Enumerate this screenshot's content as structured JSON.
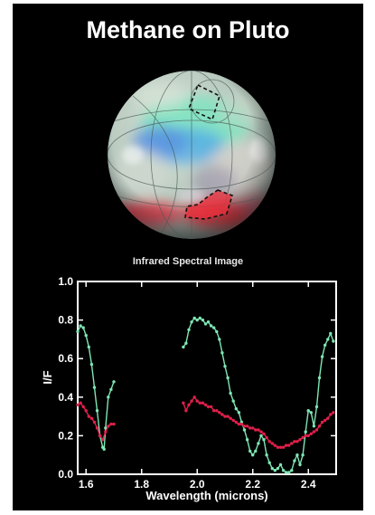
{
  "title": "Methane on Pluto",
  "image_caption": "Infrared Spectral Image",
  "colors": {
    "background": "#000000",
    "series_green": "#7ee6b4",
    "series_red": "#e0204a",
    "highlight_region": "#e8303c"
  },
  "chart_data": {
    "type": "line",
    "title": "",
    "xlabel": "Wavelength (microns)",
    "ylabel": "I/F",
    "xlim": [
      1.57,
      2.5
    ],
    "ylim": [
      0.0,
      1.0
    ],
    "xticks": [
      1.6,
      1.8,
      2.0,
      2.2,
      2.4
    ],
    "xtick_labels": [
      "1.6",
      "1.8",
      "2.0",
      "2.2",
      "2.4"
    ],
    "yticks": [
      0.0,
      0.2,
      0.4,
      0.6,
      0.8,
      1.0
    ],
    "ytick_labels": [
      "0.0",
      "0.2",
      "0.4",
      "0.6",
      "0.8",
      "1.0"
    ],
    "grid": false,
    "legend": "none",
    "series": [
      {
        "color": "#7ee6b4",
        "segments": [
          [
            [
              1.57,
              0.74
            ],
            [
              1.58,
              0.77
            ],
            [
              1.59,
              0.76
            ],
            [
              1.6,
              0.72
            ],
            [
              1.61,
              0.66
            ],
            [
              1.62,
              0.57
            ],
            [
              1.63,
              0.45
            ],
            [
              1.64,
              0.33
            ],
            [
              1.65,
              0.2
            ],
            [
              1.66,
              0.14
            ],
            [
              1.665,
              0.13
            ],
            [
              1.67,
              0.24
            ],
            [
              1.68,
              0.4
            ],
            [
              1.69,
              0.44
            ],
            [
              1.7,
              0.48
            ]
          ],
          [
            [
              1.95,
              0.66
            ],
            [
              1.96,
              0.68
            ],
            [
              1.97,
              0.75
            ],
            [
              1.98,
              0.79
            ],
            [
              1.99,
              0.81
            ],
            [
              2.0,
              0.8
            ],
            [
              2.01,
              0.81
            ],
            [
              2.02,
              0.8
            ],
            [
              2.03,
              0.78
            ],
            [
              2.04,
              0.79
            ],
            [
              2.05,
              0.77
            ],
            [
              2.06,
              0.76
            ],
            [
              2.07,
              0.74
            ],
            [
              2.08,
              0.7
            ],
            [
              2.09,
              0.63
            ],
            [
              2.1,
              0.56
            ],
            [
              2.11,
              0.5
            ],
            [
              2.12,
              0.42
            ],
            [
              2.13,
              0.38
            ],
            [
              2.14,
              0.34
            ],
            [
              2.15,
              0.32
            ],
            [
              2.16,
              0.27
            ],
            [
              2.17,
              0.23
            ],
            [
              2.18,
              0.18
            ],
            [
              2.19,
              0.12
            ],
            [
              2.2,
              0.1
            ],
            [
              2.21,
              0.12
            ],
            [
              2.22,
              0.16
            ],
            [
              2.23,
              0.2
            ],
            [
              2.24,
              0.18
            ],
            [
              2.25,
              0.1
            ],
            [
              2.26,
              0.06
            ],
            [
              2.27,
              0.03
            ],
            [
              2.28,
              0.02
            ],
            [
              2.29,
              0.03
            ],
            [
              2.3,
              0.05
            ],
            [
              2.31,
              0.02
            ],
            [
              2.32,
              0.01
            ],
            [
              2.33,
              0.01
            ],
            [
              2.34,
              0.02
            ],
            [
              2.35,
              0.07
            ],
            [
              2.36,
              0.1
            ],
            [
              2.37,
              0.05
            ],
            [
              2.38,
              0.1
            ],
            [
              2.39,
              0.22
            ],
            [
              2.4,
              0.33
            ],
            [
              2.41,
              0.32
            ],
            [
              2.42,
              0.25
            ],
            [
              2.43,
              0.35
            ],
            [
              2.44,
              0.5
            ],
            [
              2.45,
              0.61
            ],
            [
              2.46,
              0.67
            ],
            [
              2.47,
              0.7
            ],
            [
              2.48,
              0.73
            ],
            [
              2.49,
              0.69
            ]
          ]
        ]
      },
      {
        "color": "#e0204a",
        "segments": [
          [
            [
              1.57,
              0.36
            ],
            [
              1.58,
              0.37
            ],
            [
              1.59,
              0.35
            ],
            [
              1.6,
              0.33
            ],
            [
              1.61,
              0.3
            ],
            [
              1.62,
              0.29
            ],
            [
              1.63,
              0.27
            ],
            [
              1.64,
              0.24
            ],
            [
              1.65,
              0.2
            ],
            [
              1.66,
              0.18
            ],
            [
              1.67,
              0.22
            ],
            [
              1.68,
              0.25
            ],
            [
              1.69,
              0.26
            ],
            [
              1.7,
              0.26
            ]
          ],
          [
            [
              1.95,
              0.37
            ],
            [
              1.96,
              0.33
            ],
            [
              1.97,
              0.36
            ],
            [
              1.98,
              0.38
            ],
            [
              1.99,
              0.4
            ],
            [
              2.0,
              0.38
            ],
            [
              2.01,
              0.37
            ],
            [
              2.02,
              0.37
            ],
            [
              2.03,
              0.36
            ],
            [
              2.04,
              0.35
            ],
            [
              2.05,
              0.35
            ],
            [
              2.06,
              0.33
            ],
            [
              2.07,
              0.33
            ],
            [
              2.08,
              0.32
            ],
            [
              2.09,
              0.31
            ],
            [
              2.1,
              0.3
            ],
            [
              2.11,
              0.3
            ],
            [
              2.12,
              0.29
            ],
            [
              2.13,
              0.28
            ],
            [
              2.14,
              0.27
            ],
            [
              2.15,
              0.26
            ],
            [
              2.16,
              0.26
            ],
            [
              2.17,
              0.25
            ],
            [
              2.18,
              0.25
            ],
            [
              2.19,
              0.24
            ],
            [
              2.2,
              0.24
            ],
            [
              2.21,
              0.23
            ],
            [
              2.22,
              0.23
            ],
            [
              2.23,
              0.22
            ],
            [
              2.24,
              0.21
            ],
            [
              2.25,
              0.19
            ],
            [
              2.26,
              0.17
            ],
            [
              2.27,
              0.16
            ],
            [
              2.28,
              0.15
            ],
            [
              2.29,
              0.14
            ],
            [
              2.3,
              0.14
            ],
            [
              2.31,
              0.14
            ],
            [
              2.32,
              0.15
            ],
            [
              2.33,
              0.15
            ],
            [
              2.34,
              0.16
            ],
            [
              2.35,
              0.17
            ],
            [
              2.36,
              0.17
            ],
            [
              2.37,
              0.18
            ],
            [
              2.38,
              0.19
            ],
            [
              2.39,
              0.2
            ],
            [
              2.4,
              0.2
            ],
            [
              2.41,
              0.21
            ],
            [
              2.42,
              0.22
            ],
            [
              2.43,
              0.23
            ],
            [
              2.44,
              0.25
            ],
            [
              2.45,
              0.27
            ],
            [
              2.46,
              0.28
            ],
            [
              2.47,
              0.29
            ],
            [
              2.48,
              0.31
            ],
            [
              2.49,
              0.32
            ]
          ]
        ]
      }
    ]
  }
}
